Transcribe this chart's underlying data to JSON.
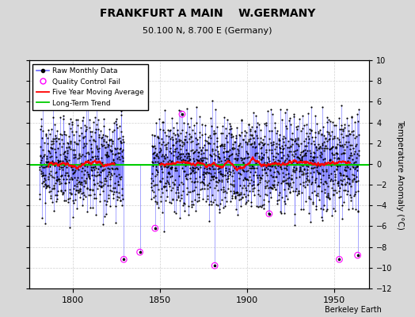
{
  "title": "FRANKFURT A MAIN    W.GERMANY",
  "subtitle": "50.100 N, 8.700 E (Germany)",
  "ylabel": "Temperature Anomaly (°C)",
  "credit": "Berkeley Earth",
  "xlim": [
    1775,
    1970
  ],
  "ylim": [
    -12,
    10
  ],
  "yticks": [
    -12,
    -10,
    -8,
    -6,
    -4,
    -2,
    0,
    2,
    4,
    6,
    8,
    10
  ],
  "xticks": [
    1800,
    1850,
    1900,
    1950
  ],
  "start_year_1": 1781,
  "end_year_1": 1829,
  "start_year_2": 1845,
  "end_year_2": 1964,
  "raw_color": "#4444ff",
  "raw_line_color": "#6666ff",
  "marker_color": "#000000",
  "qc_color": "#ff00ff",
  "moving_avg_color": "#ff0000",
  "trend_color": "#00cc00",
  "bg_color": "#d8d8d8",
  "plot_bg_color": "#ffffff",
  "seed": 12345,
  "trend_y": -0.1,
  "qc_positions_year": [
    1829,
    1838,
    1847,
    1862,
    1881,
    1912,
    1952,
    1963
  ],
  "qc_values": [
    -9.2,
    -8.5,
    -6.2,
    4.8,
    -9.8,
    -4.8,
    -9.2,
    -8.8
  ]
}
